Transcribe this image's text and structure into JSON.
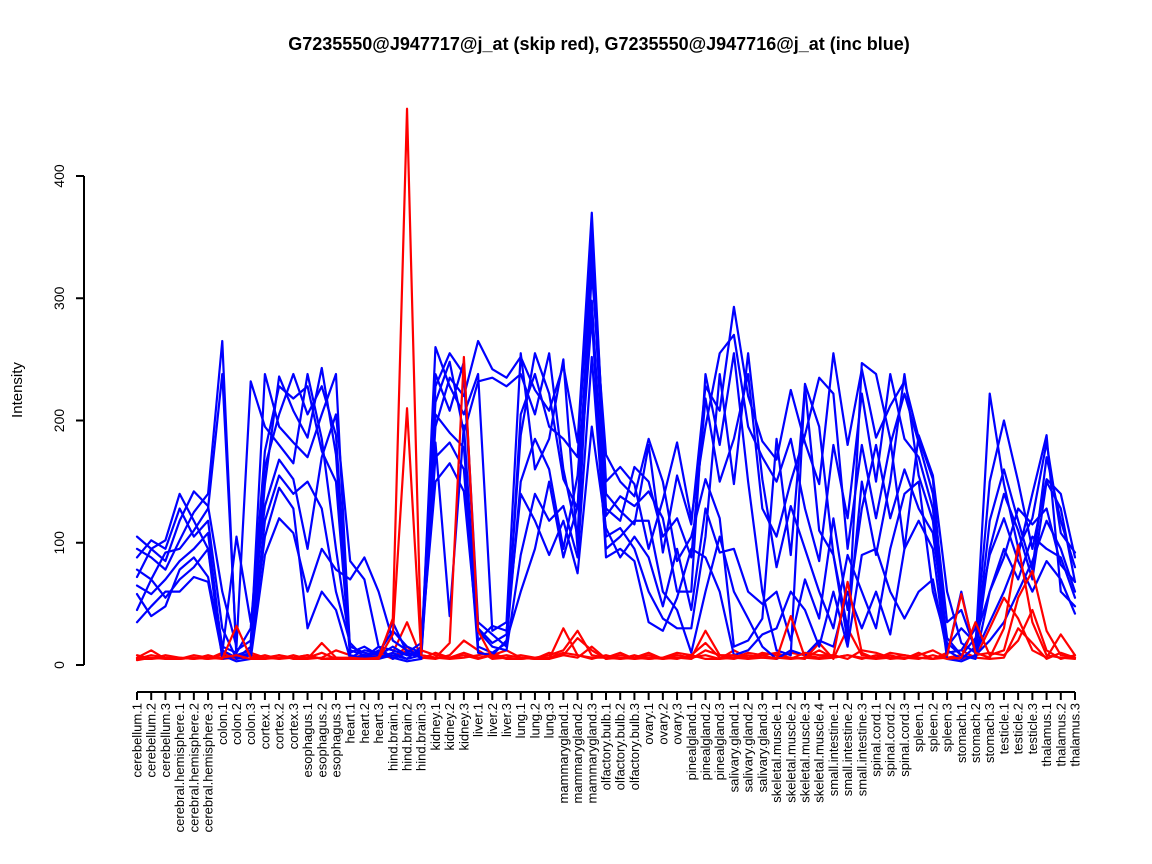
{
  "title": "G7235550@J947717@j_at (skip red), G7235550@J947716@j_at (inc blue)",
  "colors": {
    "skip_probe": "#FF0000",
    "inc_probe": "#0000FF",
    "axis": "#000000"
  },
  "chart_data": {
    "type": "line",
    "title": "G7235550@J947717@j_at (skip red), G7235550@J947716@j_at (inc blue)",
    "xlabel": "",
    "ylabel": "Intensity",
    "ylim": [
      0,
      470
    ],
    "yticks": [
      0,
      100,
      200,
      300,
      400
    ],
    "grid": false,
    "legend": "none",
    "categories": [
      "cerebellum.1",
      "cerebellum.2",
      "cerebellum.3",
      "cerebral.hemisphere.1",
      "cerebral.hemisphere.2",
      "cerebral.hemisphere.3",
      "colon.1",
      "colon.2",
      "colon.3",
      "cortex.1",
      "cortex.2",
      "cortex.3",
      "esophagus.1",
      "esophagus.2",
      "esophagus.3",
      "heart.1",
      "heart.2",
      "heart.3",
      "hind.brain.1",
      "hind.brain.2",
      "hind.brain.3",
      "kidney.1",
      "kidney.2",
      "kidney.3",
      "liver.1",
      "liver.2",
      "liver.3",
      "lung.1",
      "lung.2",
      "lung.3",
      "mammarygland.1",
      "mammarygland.2",
      "mammarygland.3",
      "olfactory.bulb.1",
      "olfactory.bulb.2",
      "olfactory.bulb.3",
      "ovary.1",
      "ovary.2",
      "ovary.3",
      "pinealgland.1",
      "pinealgland.2",
      "pinealgland.3",
      "salivary.gland.1",
      "salivary.gland.2",
      "salivary.gland.3",
      "skeletal.muscle.1",
      "skeletal.muscle.2",
      "skeletal.muscle.3",
      "skeletal.muscle.4",
      "small.intestine.1",
      "small.intestine.2",
      "small.intestine.3",
      "spinal.cord.1",
      "spinal.cord.2",
      "spinal.cord.3",
      "spleen.1",
      "spleen.2",
      "spleen.3",
      "stomach.1",
      "stomach.2",
      "stomach.3",
      "testicle.1",
      "testicle.2",
      "testicle.3",
      "thalamus.1",
      "thalamus.2",
      "thalamus.3"
    ],
    "series": [
      {
        "name": "inc-blue-1",
        "group": "G7235550@J947716@j_at",
        "color": "#0000FF",
        "values": [
          95,
          88,
          78,
          102,
          125,
          140,
          265,
          5,
          8,
          148,
          236,
          208,
          186,
          243,
          172,
          8,
          5,
          12,
          6,
          3,
          5,
          195,
          235,
          220,
          265,
          242,
          235,
          252,
          225,
          208,
          245,
          182,
          370,
          140,
          126,
          115,
          180,
          92,
          155,
          115,
          228,
          208,
          293,
          220,
          183,
          168,
          225,
          182,
          148,
          255,
          180,
          242,
          186,
          212,
          232,
          186,
          152,
          12,
          5,
          15,
          222,
          148,
          96,
          120,
          182,
          108,
          92
        ]
      },
      {
        "name": "inc-blue-2",
        "group": "G7235550@J947716@j_at",
        "color": "#0000FF",
        "values": [
          78,
          70,
          92,
          95,
          110,
          128,
          238,
          12,
          20,
          162,
          205,
          238,
          205,
          228,
          188,
          12,
          8,
          6,
          10,
          5,
          8,
          228,
          255,
          238,
          30,
          18,
          25,
          188,
          255,
          222,
          152,
          128,
          342,
          122,
          138,
          130,
          142,
          120,
          60,
          60,
          238,
          180,
          255,
          150,
          60,
          12,
          8,
          230,
          195,
          90,
          30,
          150,
          90,
          150,
          238,
          155,
          118,
          8,
          60,
          8,
          95,
          140,
          110,
          70,
          150,
          128,
          68
        ]
      },
      {
        "name": "inc-blue-3",
        "group": "G7235550@J947716@j_at",
        "color": "#0000FF",
        "values": [
          65,
          58,
          70,
          85,
          95,
          108,
          10,
          105,
          35,
          130,
          168,
          152,
          95,
          170,
          205,
          85,
          70,
          15,
          12,
          8,
          10,
          182,
          40,
          196,
          15,
          10,
          18,
          150,
          185,
          160,
          95,
          155,
          298,
          105,
          112,
          95,
          60,
          38,
          30,
          30,
          105,
          238,
          148,
          255,
          152,
          80,
          130,
          95,
          60,
          30,
          90,
          60,
          30,
          95,
          140,
          150,
          60,
          18,
          8,
          5,
          60,
          95,
          70,
          105,
          95,
          88,
          55
        ]
      },
      {
        "name": "inc-blue-4",
        "group": "G7235550@J947716@j_at",
        "color": "#0000FF",
        "values": [
          105,
          95,
          85,
          118,
          142,
          130,
          60,
          15,
          232,
          195,
          180,
          165,
          238,
          185,
          95,
          15,
          10,
          8,
          35,
          10,
          6,
          260,
          228,
          205,
          238,
          28,
          35,
          255,
          160,
          185,
          250,
          95,
          322,
          172,
          150,
          138,
          185,
          150,
          85,
          105,
          152,
          120,
          15,
          20,
          38,
          185,
          90,
          228,
          110,
          90,
          20,
          247,
          238,
          185,
          95,
          188,
          155,
          60,
          18,
          10,
          35,
          60,
          90,
          140,
          188,
          60,
          48
        ]
      },
      {
        "name": "inc-blue-5",
        "group": "G7235550@J947716@j_at",
        "color": "#0000FF",
        "values": [
          45,
          70,
          55,
          70,
          80,
          95,
          5,
          8,
          12,
          105,
          145,
          128,
          30,
          60,
          45,
          5,
          8,
          5,
          8,
          5,
          15,
          205,
          190,
          178,
          28,
          15,
          12,
          90,
          140,
          118,
          130,
          88,
          252,
          95,
          105,
          118,
          118,
          60,
          45,
          10,
          60,
          105,
          60,
          38,
          15,
          5,
          12,
          8,
          20,
          15,
          60,
          30,
          60,
          25,
          95,
          118,
          95,
          5,
          3,
          8,
          20,
          35,
          60,
          85,
          118,
          95,
          60
        ]
      },
      {
        "name": "inc-blue-6",
        "group": "G7235550@J947716@j_at",
        "color": "#0000FF",
        "values": [
          88,
          102,
          95,
          128,
          105,
          118,
          30,
          5,
          15,
          238,
          195,
          182,
          170,
          205,
          238,
          10,
          15,
          8,
          15,
          8,
          12,
          238,
          208,
          248,
          35,
          25,
          15,
          205,
          238,
          195,
          185,
          170,
          355,
          150,
          162,
          148,
          95,
          135,
          182,
          120,
          195,
          255,
          270,
          195,
          170,
          150,
          185,
          128,
          85,
          180,
          120,
          222,
          150,
          238,
          185,
          170,
          128,
          15,
          30,
          18,
          150,
          200,
          150,
          95,
          152,
          140,
          88
        ]
      },
      {
        "name": "inc-blue-7",
        "group": "G7235550@J947716@j_at",
        "color": "#0000FF",
        "values": [
          35,
          48,
          60,
          60,
          72,
          68,
          8,
          3,
          5,
          90,
          120,
          108,
          60,
          95,
          78,
          70,
          88,
          60,
          20,
          12,
          8,
          170,
          182,
          160,
          10,
          8,
          20,
          60,
          95,
          150,
          88,
          130,
          285,
          88,
          95,
          85,
          35,
          28,
          55,
          95,
          88,
          60,
          8,
          12,
          25,
          30,
          60,
          45,
          15,
          60,
          15,
          90,
          95,
          60,
          38,
          60,
          70,
          10,
          12,
          30,
          90,
          120,
          85,
          60,
          85,
          70,
          42
        ]
      },
      {
        "name": "inc-blue-8",
        "group": "G7235550@J947716@j_at",
        "color": "#0000FF",
        "values": [
          72,
          95,
          102,
          140,
          118,
          95,
          15,
          10,
          30,
          175,
          228,
          218,
          228,
          175,
          150,
          6,
          12,
          10,
          28,
          15,
          10,
          215,
          248,
          190,
          232,
          235,
          228,
          238,
          205,
          255,
          160,
          105,
          338,
          128,
          118,
          162,
          150,
          105,
          120,
          88,
          218,
          150,
          185,
          238,
          128,
          105,
          150,
          188,
          235,
          222,
          95,
          180,
          120,
          180,
          222,
          182,
          140,
          35,
          45,
          12,
          118,
          160,
          118,
          78,
          170,
          118,
          80
        ]
      },
      {
        "name": "inc-blue-9",
        "group": "G7235550@J947716@j_at",
        "color": "#0000FF",
        "values": [
          58,
          40,
          48,
          78,
          88,
          72,
          12,
          6,
          10,
          118,
          155,
          140,
          150,
          128,
          60,
          18,
          6,
          15,
          5,
          10,
          18,
          150,
          165,
          142,
          20,
          32,
          28,
          140,
          118,
          90,
          118,
          75,
          195,
          112,
          88,
          105,
          88,
          48,
          95,
          45,
          128,
          92,
          95,
          60,
          50,
          60,
          20,
          70,
          38,
          120,
          45,
          128,
          180,
          120,
          160,
          128,
          108,
          22,
          8,
          22,
          60,
          88,
          128,
          115,
          128,
          82,
          68
        ]
      },
      {
        "name": "skip-red-1",
        "group": "G7235550@J947717@j_at",
        "color": "#FF0000",
        "values": [
          6,
          12,
          5,
          5,
          6,
          5,
          6,
          8,
          5,
          5,
          6,
          6,
          8,
          5,
          6,
          5,
          5,
          6,
          38,
          455,
          12,
          8,
          6,
          10,
          6,
          8,
          5,
          5,
          6,
          8,
          12,
          28,
          8,
          6,
          5,
          8,
          5,
          6,
          5,
          8,
          18,
          6,
          5,
          8,
          6,
          6,
          5,
          10,
          8,
          8,
          68,
          10,
          5,
          6,
          8,
          6,
          5,
          8,
          58,
          10,
          6,
          30,
          98,
          35,
          8,
          6,
          5
        ]
      },
      {
        "name": "skip-red-2",
        "group": "G7235550@J947717@j_at",
        "color": "#FF0000",
        "values": [
          5,
          5,
          8,
          6,
          5,
          6,
          5,
          32,
          6,
          6,
          5,
          8,
          5,
          18,
          6,
          6,
          5,
          5,
          25,
          210,
          8,
          6,
          18,
          252,
          28,
          6,
          8,
          6,
          5,
          5,
          8,
          22,
          12,
          5,
          6,
          5,
          6,
          5,
          8,
          6,
          28,
          8,
          8,
          5,
          6,
          5,
          40,
          6,
          12,
          6,
          8,
          5,
          8,
          5,
          6,
          5,
          8,
          5,
          6,
          35,
          8,
          12,
          55,
          77,
          28,
          8,
          6
        ]
      },
      {
        "name": "skip-red-3",
        "group": "G7235550@J947717@j_at",
        "color": "#FF0000",
        "values": [
          4,
          6,
          5,
          5,
          8,
          6,
          8,
          5,
          10,
          6,
          8,
          5,
          5,
          6,
          12,
          8,
          5,
          6,
          10,
          35,
          6,
          5,
          8,
          20,
          12,
          5,
          6,
          8,
          6,
          5,
          30,
          8,
          6,
          6,
          10,
          5,
          8,
          5,
          6,
          5,
          12,
          8,
          6,
          5,
          10,
          8,
          6,
          5,
          18,
          5,
          30,
          8,
          6,
          8,
          5,
          10,
          5,
          6,
          8,
          6,
          30,
          55,
          38,
          12,
          6,
          25,
          8
        ]
      },
      {
        "name": "skip-red-4",
        "group": "G7235550@J947717@j_at",
        "color": "#FF0000",
        "values": [
          5,
          8,
          6,
          6,
          5,
          8,
          5,
          6,
          5,
          8,
          5,
          6,
          6,
          10,
          5,
          5,
          6,
          8,
          6,
          15,
          5,
          10,
          6,
          8,
          5,
          8,
          12,
          6,
          5,
          10,
          8,
          6,
          15,
          5,
          8,
          6,
          10,
          5,
          8,
          6,
          8,
          5,
          12,
          6,
          8,
          5,
          10,
          8,
          6,
          8,
          5,
          12,
          10,
          6,
          5,
          8,
          12,
          6,
          5,
          8,
          10,
          8,
          20,
          45,
          12,
          5,
          8
        ]
      },
      {
        "name": "skip-red-5",
        "group": "G7235550@J947717@j_at",
        "color": "#FF0000",
        "values": [
          8,
          5,
          6,
          5,
          6,
          5,
          10,
          6,
          8,
          5,
          8,
          6,
          8,
          5,
          5,
          6,
          8,
          10,
          5,
          12,
          8,
          6,
          5,
          6,
          8,
          10,
          5,
          5,
          6,
          6,
          10,
          8,
          5,
          8,
          5,
          6,
          5,
          6,
          10,
          8,
          5,
          5,
          6,
          10,
          8,
          10,
          5,
          6,
          5,
          6,
          8,
          6,
          5,
          10,
          8,
          6,
          5,
          10,
          12,
          6,
          5,
          6,
          30,
          18,
          5,
          10,
          6
        ]
      }
    ]
  }
}
